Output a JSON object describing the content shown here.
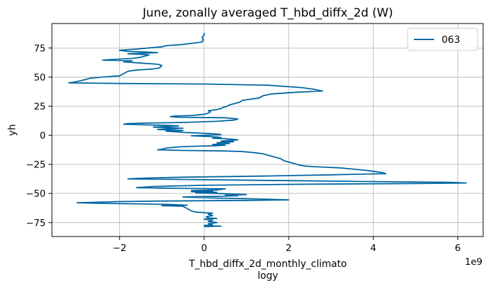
{
  "chart_data": {
    "type": "line",
    "title": "June, zonally averaged T_hbd_diffx_2d (W)",
    "xlabel": "T_hbd_diffx_2d_monthly_climato",
    "xlabel_line2": "logy",
    "ylabel": "yh",
    "x_offset_label": "1e9",
    "x_scale": 1000000000,
    "xlim": [
      -3.6,
      6.6
    ],
    "ylim": [
      -87,
      96
    ],
    "xticks": [
      -2,
      0,
      2,
      4,
      6
    ],
    "xtick_labels": [
      "−2",
      "0",
      "2",
      "4",
      "6"
    ],
    "yticks": [
      -75,
      -50,
      -25,
      0,
      25,
      50,
      75
    ],
    "ytick_labels": [
      "−75",
      "−50",
      "−25",
      "0",
      "25",
      "50",
      "75"
    ],
    "grid": true,
    "legend_position": "top-right",
    "line_color": "#0066a1",
    "series": [
      {
        "name": "063",
        "points": [
          [
            0.0,
            88
          ],
          [
            0.0,
            86
          ],
          [
            -0.05,
            84
          ],
          [
            -0.02,
            82
          ],
          [
            -0.05,
            80
          ],
          [
            -0.3,
            79
          ],
          [
            -0.5,
            78
          ],
          [
            -0.9,
            77
          ],
          [
            -1.0,
            76
          ],
          [
            -1.3,
            75
          ],
          [
            -1.6,
            74
          ],
          [
            -2.0,
            73
          ],
          [
            -1.8,
            72
          ],
          [
            -1.4,
            71.5
          ],
          [
            -1.1,
            71
          ],
          [
            -1.4,
            70.5
          ],
          [
            -1.8,
            70
          ],
          [
            -1.5,
            69.5
          ],
          [
            -1.3,
            69
          ],
          [
            -1.4,
            68
          ],
          [
            -1.5,
            67
          ],
          [
            -1.7,
            66
          ],
          [
            -2.2,
            65
          ],
          [
            -2.4,
            64.5
          ],
          [
            -1.7,
            64
          ],
          [
            -1.9,
            63
          ],
          [
            -1.5,
            62
          ],
          [
            -1.1,
            61
          ],
          [
            -1.0,
            60
          ],
          [
            -1.05,
            58
          ],
          [
            -1.2,
            57
          ],
          [
            -1.6,
            56
          ],
          [
            -1.8,
            55
          ],
          [
            -1.9,
            53
          ],
          [
            -2.0,
            51
          ],
          [
            -2.4,
            50
          ],
          [
            -2.7,
            49
          ],
          [
            -2.9,
            47
          ],
          [
            -3.1,
            45.5
          ],
          [
            -3.2,
            45
          ],
          [
            -2.0,
            44.5
          ],
          [
            0.0,
            44
          ],
          [
            1.5,
            43
          ],
          [
            2.3,
            41
          ],
          [
            2.6,
            39.5
          ],
          [
            2.8,
            38
          ],
          [
            2.2,
            37
          ],
          [
            1.6,
            35.5
          ],
          [
            1.4,
            34
          ],
          [
            1.3,
            32
          ],
          [
            1.1,
            31
          ],
          [
            0.9,
            30
          ],
          [
            0.85,
            28.5
          ],
          [
            0.75,
            27.5
          ],
          [
            0.6,
            26
          ],
          [
            0.55,
            25
          ],
          [
            0.45,
            24
          ],
          [
            0.4,
            23
          ],
          [
            0.3,
            22
          ],
          [
            0.1,
            21
          ],
          [
            0.15,
            20
          ],
          [
            0.1,
            19
          ],
          [
            0.0,
            18
          ],
          [
            -0.3,
            17
          ],
          [
            -0.7,
            16.5
          ],
          [
            -0.8,
            16
          ],
          [
            -0.6,
            15.5
          ],
          [
            0.5,
            15
          ],
          [
            0.8,
            14
          ],
          [
            0.7,
            13
          ],
          [
            0.3,
            12
          ],
          [
            -0.5,
            11
          ],
          [
            -1.3,
            10.5
          ],
          [
            -1.8,
            10
          ],
          [
            -1.9,
            9.5
          ],
          [
            -1.5,
            9
          ],
          [
            -0.9,
            8.5
          ],
          [
            -0.6,
            8
          ],
          [
            -0.9,
            7.5
          ],
          [
            -1.2,
            7
          ],
          [
            -0.8,
            6.5
          ],
          [
            -0.5,
            6
          ],
          [
            -0.9,
            5.5
          ],
          [
            -1.1,
            5
          ],
          [
            -0.8,
            4.5
          ],
          [
            -0.5,
            4
          ],
          [
            -0.9,
            3.5
          ],
          [
            -0.7,
            3
          ],
          [
            -0.5,
            2.5
          ],
          [
            -0.2,
            2
          ],
          [
            0.1,
            1.5
          ],
          [
            0.3,
            1
          ],
          [
            0.4,
            0.5
          ],
          [
            0.0,
            0
          ],
          [
            -0.3,
            -0.5
          ],
          [
            0.1,
            -1
          ],
          [
            0.3,
            -1.5
          ],
          [
            0.4,
            -2
          ],
          [
            0.2,
            -2.5
          ],
          [
            0.5,
            -3
          ],
          [
            0.7,
            -3.5
          ],
          [
            0.8,
            -4
          ],
          [
            0.6,
            -4.5
          ],
          [
            0.4,
            -5
          ],
          [
            0.7,
            -5.5
          ],
          [
            0.5,
            -6
          ],
          [
            0.3,
            -6.5
          ],
          [
            0.6,
            -7
          ],
          [
            0.4,
            -7.5
          ],
          [
            0.2,
            -8
          ],
          [
            0.5,
            -8.5
          ],
          [
            0.3,
            -9
          ],
          [
            -0.3,
            -9.5
          ],
          [
            -0.6,
            -10
          ],
          [
            -0.9,
            -11
          ],
          [
            -1.0,
            -12
          ],
          [
            -1.1,
            -12.5
          ],
          [
            -0.5,
            -13
          ],
          [
            0.5,
            -13.5
          ],
          [
            0.9,
            -14
          ],
          [
            1.2,
            -15
          ],
          [
            1.4,
            -16
          ],
          [
            1.5,
            -17
          ],
          [
            1.6,
            -18
          ],
          [
            1.7,
            -19
          ],
          [
            1.8,
            -20
          ],
          [
            1.85,
            -21
          ],
          [
            1.9,
            -22
          ],
          [
            2.0,
            -23
          ],
          [
            2.1,
            -24
          ],
          [
            2.2,
            -25
          ],
          [
            2.3,
            -26
          ],
          [
            2.4,
            -26.5
          ],
          [
            2.6,
            -27
          ],
          [
            2.9,
            -27.5
          ],
          [
            3.2,
            -28
          ],
          [
            3.5,
            -29
          ],
          [
            3.8,
            -30
          ],
          [
            4.0,
            -31
          ],
          [
            4.2,
            -32
          ],
          [
            4.3,
            -33
          ],
          [
            3.0,
            -34
          ],
          [
            1.5,
            -35
          ],
          [
            -0.5,
            -36
          ],
          [
            -1.5,
            -37
          ],
          [
            -1.8,
            -37.5
          ],
          [
            -0.5,
            -38
          ],
          [
            2.0,
            -39
          ],
          [
            4.5,
            -40
          ],
          [
            5.8,
            -40.5
          ],
          [
            6.2,
            -41
          ],
          [
            5.0,
            -41.5
          ],
          [
            2.5,
            -42
          ],
          [
            0.0,
            -43
          ],
          [
            -1.2,
            -44
          ],
          [
            -1.6,
            -45
          ],
          [
            -0.8,
            -45.5
          ],
          [
            0.5,
            -46
          ],
          [
            0.3,
            -47
          ],
          [
            -0.3,
            -47.5
          ],
          [
            0.2,
            -48
          ],
          [
            -0.3,
            -48.5
          ],
          [
            0.3,
            -49
          ],
          [
            -0.2,
            -49.5
          ],
          [
            0.3,
            -50
          ],
          [
            0.7,
            -50.5
          ],
          [
            1.0,
            -51
          ],
          [
            0.5,
            -51.5
          ],
          [
            0.8,
            -52
          ],
          [
            0.3,
            -52.5
          ],
          [
            -0.5,
            -53
          ],
          [
            0.3,
            -54
          ],
          [
            1.0,
            -54.5
          ],
          [
            1.5,
            -55
          ],
          [
            2.0,
            -55.5
          ],
          [
            1.0,
            -56
          ],
          [
            -1.0,
            -56.5
          ],
          [
            -2.0,
            -57
          ],
          [
            -3.0,
            -58
          ],
          [
            -2.5,
            -58.5
          ],
          [
            -1.5,
            -59
          ],
          [
            -0.8,
            -59.5
          ],
          [
            -0.4,
            -60
          ],
          [
            -1.0,
            -60.5
          ],
          [
            -0.5,
            -61
          ],
          [
            -0.4,
            -63
          ],
          [
            -0.3,
            -65
          ],
          [
            -0.2,
            -66
          ],
          [
            0.0,
            -66.5
          ],
          [
            0.2,
            -67
          ],
          [
            0.1,
            -68
          ],
          [
            0.2,
            -69
          ],
          [
            0.05,
            -70
          ],
          [
            0.1,
            -71
          ],
          [
            0.3,
            -71.5
          ],
          [
            0.0,
            -72
          ],
          [
            0.2,
            -73
          ],
          [
            0.1,
            -74
          ],
          [
            0.3,
            -75
          ],
          [
            0.1,
            -76
          ],
          [
            0.2,
            -77
          ],
          [
            0.0,
            -77.5
          ],
          [
            0.4,
            -78
          ],
          [
            0.0,
            -78.5
          ]
        ]
      }
    ]
  }
}
